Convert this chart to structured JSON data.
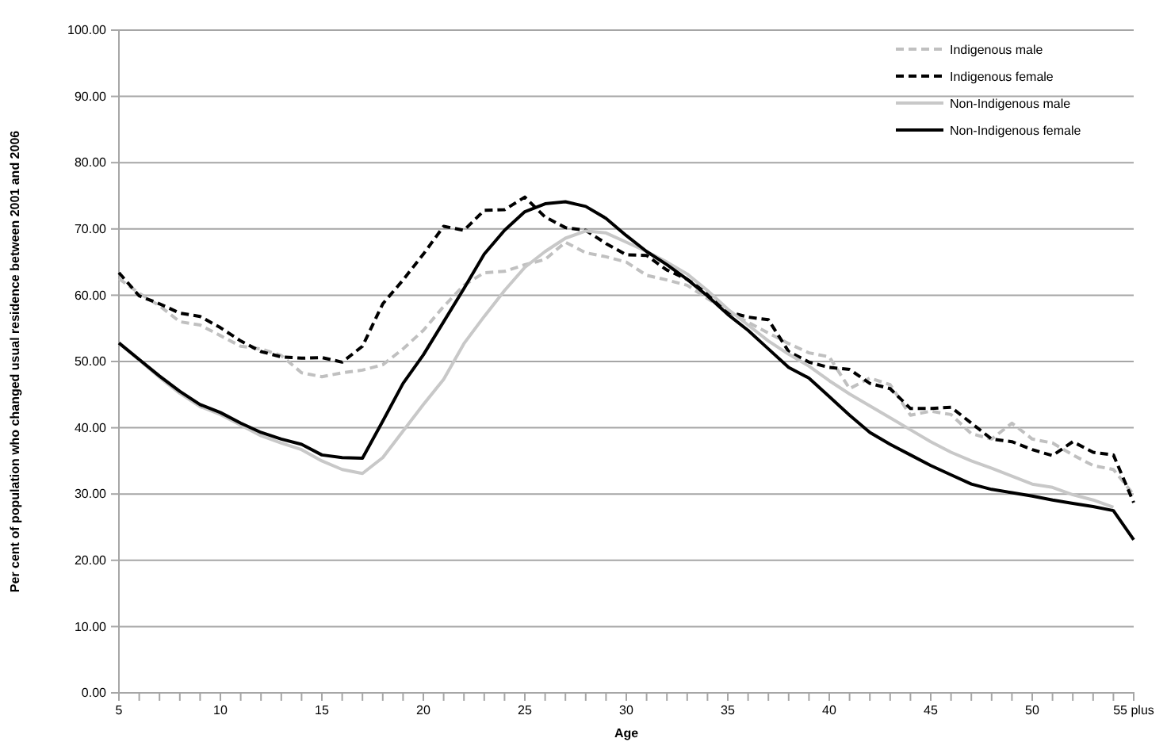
{
  "chart_data": {
    "type": "line",
    "xlabel": "Age",
    "ylabel": "Per cent of population  who changed usual residence between 2001 and 2006",
    "categories": [
      "5",
      null,
      null,
      null,
      null,
      "10",
      null,
      null,
      null,
      null,
      "15",
      null,
      null,
      null,
      null,
      "20",
      null,
      null,
      null,
      null,
      "25",
      null,
      null,
      null,
      null,
      "30",
      null,
      null,
      null,
      null,
      "35",
      null,
      null,
      null,
      null,
      "40",
      null,
      null,
      null,
      null,
      "45",
      null,
      null,
      null,
      null,
      "50",
      null,
      null,
      null,
      null,
      "55 plus"
    ],
    "series": [
      {
        "name": "Indigenous male",
        "color": "#c0c0c0",
        "line_style": "dashed",
        "values": [
          62.5,
          60.3,
          58.4,
          56.0,
          55.5,
          53.9,
          52.3,
          51.9,
          50.9,
          48.3,
          47.7,
          48.3,
          48.7,
          49.5,
          51.9,
          54.7,
          58.3,
          61.5,
          63.4,
          63.6,
          64.6,
          65.4,
          68.0,
          66.4,
          65.8,
          65.0,
          63.0,
          62.3,
          61.5,
          59.5,
          57.5,
          55.9,
          54.3,
          52.7,
          51.3,
          50.7,
          45.9,
          47.5,
          46.5,
          41.9,
          42.5,
          42.0,
          39.1,
          38.3,
          40.7,
          38.3,
          37.7,
          35.9,
          34.3,
          33.7,
          29.9
        ]
      },
      {
        "name": "Indigenous female",
        "color": "#000000",
        "line_style": "dashed",
        "values": [
          63.4,
          59.9,
          58.7,
          57.3,
          56.8,
          55.1,
          53.1,
          51.5,
          50.7,
          50.5,
          50.6,
          49.9,
          52.3,
          58.7,
          62.3,
          66.2,
          70.4,
          69.8,
          72.8,
          72.9,
          74.8,
          71.8,
          70.2,
          69.8,
          67.8,
          66.1,
          66.0,
          63.8,
          62.4,
          60.3,
          57.5,
          56.7,
          56.3,
          51.5,
          49.9,
          49.1,
          48.8,
          46.7,
          45.9,
          42.9,
          42.9,
          43.1,
          40.7,
          38.3,
          37.9,
          36.7,
          35.8,
          37.9,
          36.3,
          35.9,
          28.7
        ]
      },
      {
        "name": "Non-Indigenous male",
        "color": "#c8c8c8",
        "line_style": "solid",
        "values": [
          52.8,
          50.2,
          47.6,
          45.2,
          43.2,
          42.0,
          40.4,
          38.8,
          37.7,
          36.7,
          35.0,
          33.7,
          33.1,
          35.5,
          39.5,
          43.5,
          47.3,
          52.7,
          56.8,
          60.7,
          64.2,
          66.6,
          68.6,
          69.7,
          69.4,
          68.0,
          66.6,
          65.0,
          63.2,
          60.7,
          57.9,
          55.5,
          53.1,
          51.1,
          49.3,
          47.1,
          45.1,
          43.3,
          41.5,
          39.7,
          37.9,
          36.3,
          35.0,
          33.9,
          32.7,
          31.5,
          31.0,
          29.9,
          29.1,
          28.0,
          null
        ]
      },
      {
        "name": "Non-Indigenous female",
        "color": "#000000",
        "line_style": "solid",
        "values": [
          52.8,
          50.3,
          47.8,
          45.5,
          43.5,
          42.3,
          40.7,
          39.3,
          38.3,
          37.5,
          35.9,
          35.5,
          35.4,
          41.0,
          46.7,
          51.0,
          56.0,
          61.0,
          66.2,
          69.8,
          72.6,
          73.8,
          74.1,
          73.4,
          71.6,
          69.0,
          66.6,
          64.6,
          62.4,
          59.9,
          57.1,
          54.7,
          51.9,
          49.1,
          47.5,
          44.7,
          41.9,
          39.3,
          37.5,
          35.9,
          34.3,
          32.9,
          31.5,
          30.7,
          30.2,
          29.7,
          29.1,
          28.6,
          28.1,
          27.5,
          23.1
        ]
      }
    ],
    "ylim": [
      0,
      100
    ],
    "yticks": [
      {
        "value": 0,
        "label": "0.00"
      },
      {
        "value": 10,
        "label": "10.00"
      },
      {
        "value": 20,
        "label": "20.00"
      },
      {
        "value": 30,
        "label": "30.00"
      },
      {
        "value": 40,
        "label": "40.00"
      },
      {
        "value": 50,
        "label": "50.00"
      },
      {
        "value": 60,
        "label": "60.00"
      },
      {
        "value": 70,
        "label": "70.00"
      },
      {
        "value": 80,
        "label": "80.00"
      },
      {
        "value": 90,
        "label": "90.00"
      },
      {
        "value": 100,
        "label": "100.00"
      }
    ],
    "grid": "y",
    "legend": "top right",
    "marker": "none"
  }
}
